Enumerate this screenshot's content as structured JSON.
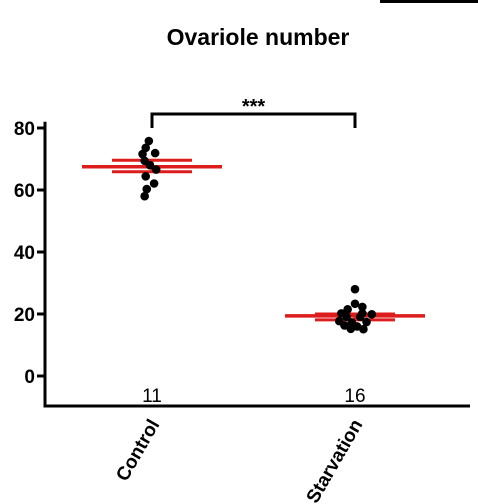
{
  "chart_data": {
    "type": "scatter",
    "title": "Ovariole number",
    "xlabel": "",
    "ylabel": "",
    "ylim": [
      -10,
      82
    ],
    "yticks": [
      0,
      20,
      40,
      60,
      80
    ],
    "grid": false,
    "categories": [
      "Control",
      "Starvation"
    ],
    "sample_sizes": [
      "11",
      "16"
    ],
    "significance": "***",
    "colors": {
      "points": "#000000",
      "mean_sem": "#dd1c1c",
      "axis": "#000000"
    },
    "groups": [
      {
        "name": "Control",
        "mean": 67.5,
        "sem": [
          65.9,
          69.6
        ],
        "points": [
          {
            "offset": -0.03,
            "value": 75.8
          },
          {
            "offset": -0.06,
            "value": 73.6
          },
          {
            "offset": -0.09,
            "value": 71.6
          },
          {
            "offset": 0.03,
            "value": 71.9
          },
          {
            "offset": -0.07,
            "value": 69.4
          },
          {
            "offset": -0.02,
            "value": 68.0
          },
          {
            "offset": 0.04,
            "value": 66.6
          },
          {
            "offset": -0.06,
            "value": 64.4
          },
          {
            "offset": 0.02,
            "value": 62.1
          },
          {
            "offset": -0.05,
            "value": 60.3
          },
          {
            "offset": -0.07,
            "value": 58.0
          }
        ]
      },
      {
        "name": "Starvation",
        "mean": 19.4,
        "sem": [
          18.1,
          20.0
        ],
        "points": [
          {
            "offset": 0.0,
            "value": 28.0
          },
          {
            "offset": 0.0,
            "value": 23.3
          },
          {
            "offset": 0.07,
            "value": 22.3
          },
          {
            "offset": -0.07,
            "value": 21.5
          },
          {
            "offset": -0.13,
            "value": 20.2
          },
          {
            "offset": 0.07,
            "value": 20.2
          },
          {
            "offset": 0.16,
            "value": 19.9
          },
          {
            "offset": -0.08,
            "value": 19.1
          },
          {
            "offset": 0.05,
            "value": 19.1
          },
          {
            "offset": -0.15,
            "value": 17.7
          },
          {
            "offset": -0.03,
            "value": 17.3
          },
          {
            "offset": 0.11,
            "value": 17.4
          },
          {
            "offset": -0.1,
            "value": 16.3
          },
          {
            "offset": 0.02,
            "value": 16.0
          },
          {
            "offset": -0.04,
            "value": 15.2
          },
          {
            "offset": 0.08,
            "value": 15.1
          }
        ]
      }
    ]
  }
}
